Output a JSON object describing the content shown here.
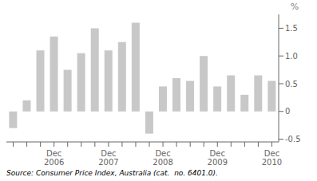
{
  "chart_data": {
    "type": "bar",
    "categories": [
      null,
      null,
      null,
      "Dec\n2006",
      null,
      null,
      null,
      "Dec\n2007",
      null,
      null,
      null,
      "Dec\n2008",
      null,
      null,
      null,
      "Dec\n2009",
      null,
      null,
      null,
      "Dec\n2010"
    ],
    "values": [
      -0.3,
      0.2,
      1.1,
      1.35,
      0.75,
      1.05,
      1.5,
      1.1,
      1.25,
      1.6,
      -0.4,
      0.45,
      0.6,
      0.55,
      1.0,
      0.45,
      0.65,
      0.3,
      0.65,
      0.55
    ],
    "color": "#c8c8c8",
    "ylim": [
      -0.55,
      1.75
    ],
    "yticks": [
      -0.5,
      0,
      0.5,
      {
        "value": 1.0,
        "label": "1.0"
      },
      1.5
    ],
    "y_label": "%",
    "annotations": [
      "Source: Consumer Price Index, Australia (cat.  no. 6401.0)."
    ],
    "grid": false
  }
}
